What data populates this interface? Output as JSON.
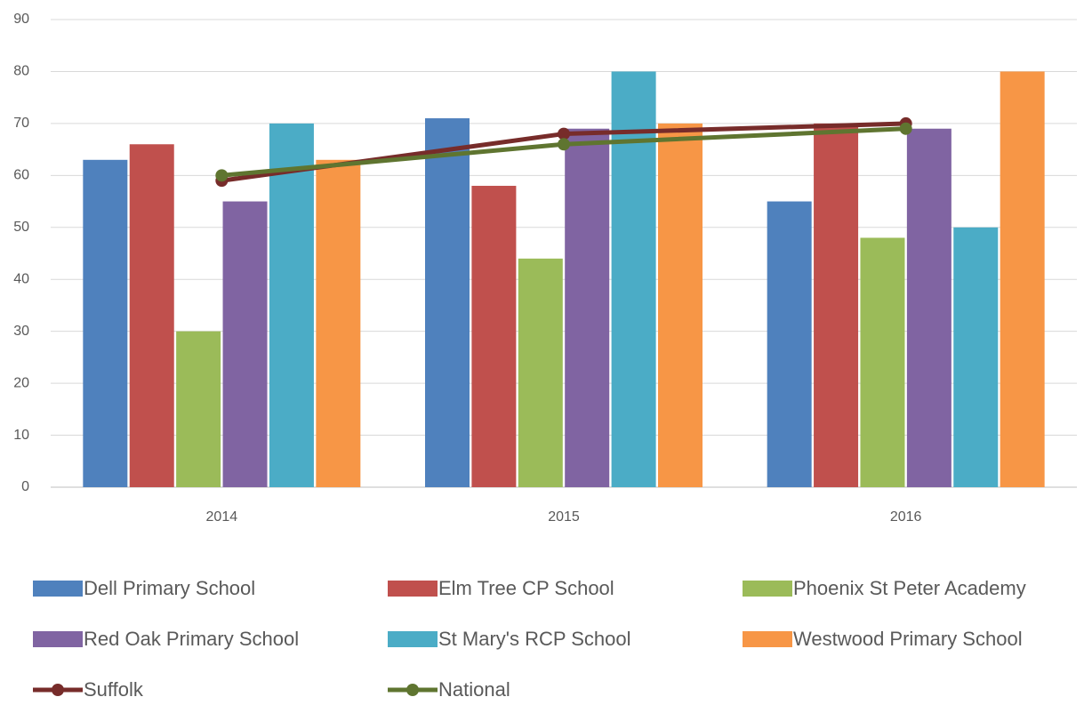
{
  "chart_data": {
    "type": "bar",
    "categories": [
      "2014",
      "2015",
      "2016"
    ],
    "series": [
      {
        "name": "Dell Primary School",
        "type": "bar",
        "color": "#4f81bd",
        "values": [
          63,
          71,
          55
        ]
      },
      {
        "name": "Elm Tree CP School",
        "type": "bar",
        "color": "#c0504d",
        "values": [
          66,
          58,
          70
        ]
      },
      {
        "name": "Phoenix St Peter Academy",
        "type": "bar",
        "color": "#9bbb59",
        "values": [
          30,
          44,
          48
        ]
      },
      {
        "name": "Red Oak Primary School",
        "type": "bar",
        "color": "#8064a2",
        "values": [
          55,
          69,
          69
        ]
      },
      {
        "name": "St Mary's RCP School",
        "type": "bar",
        "color": "#4bacc6",
        "values": [
          70,
          80,
          50
        ]
      },
      {
        "name": "Westwood Primary School",
        "type": "bar",
        "color": "#f79646",
        "values": [
          63,
          70,
          80
        ]
      },
      {
        "name": "Suffolk",
        "type": "line",
        "color": "#772c2a",
        "values": [
          59,
          68,
          70
        ]
      },
      {
        "name": "National",
        "type": "line",
        "color": "#5f7530",
        "values": [
          60,
          66,
          69
        ]
      }
    ],
    "ylim": [
      0,
      90
    ],
    "yticks": [
      0,
      10,
      20,
      30,
      40,
      50,
      60,
      70,
      80,
      90
    ],
    "grid": true,
    "legend": "bottom"
  }
}
